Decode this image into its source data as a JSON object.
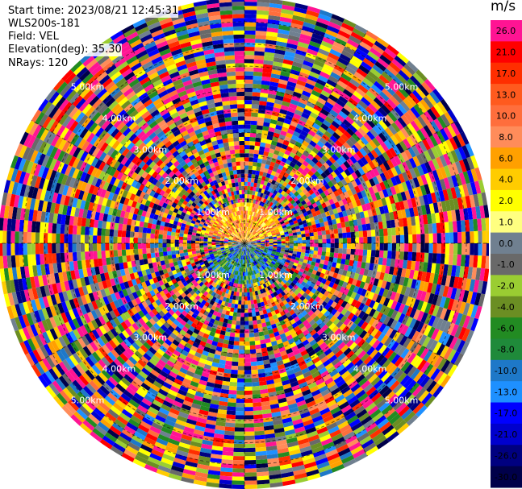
{
  "header": {
    "start_time": "Start time: 2023/08/21 12:45:31",
    "instrument": "WLS200s-181",
    "field": "Field: VEL",
    "elevation": "Elevation(deg): 35.30",
    "nrays": "NRays: 120"
  },
  "chart_data": {
    "type": "polar-ppi",
    "field": "VEL",
    "unit": "m/s",
    "nrays": 120,
    "elevation_deg": 35.3,
    "range_ring_labels": [
      "1.00km",
      "2.00km",
      "3.00km",
      "4.00km",
      "5.00km"
    ],
    "range_ring_values_km": [
      1,
      2,
      3,
      4,
      5
    ],
    "colorbar": {
      "unit": "m/s",
      "levels": [
        {
          "label": "26.0",
          "color": "#ff1493"
        },
        {
          "label": "21.0",
          "color": "#ff0000"
        },
        {
          "label": "17.0",
          "color": "#ff2e00"
        },
        {
          "label": "13.0",
          "color": "#ff5a1e"
        },
        {
          "label": "10.0",
          "color": "#ff6e3c"
        },
        {
          "label": "8.0",
          "color": "#ff8c5a"
        },
        {
          "label": "6.0",
          "color": "#ffa000"
        },
        {
          "label": "4.0",
          "color": "#ffcc00"
        },
        {
          "label": "2.0",
          "color": "#ffff00"
        },
        {
          "label": "1.0",
          "color": "#ffff80"
        },
        {
          "label": "0.0",
          "color": "#708090"
        },
        {
          "label": "-1.0",
          "color": "#696969"
        },
        {
          "label": "-2.0",
          "color": "#9acd32"
        },
        {
          "label": "-4.0",
          "color": "#6b8e23"
        },
        {
          "label": "-6.0",
          "color": "#228b22"
        },
        {
          "label": "-8.0",
          "color": "#1f8a3a"
        },
        {
          "label": "-10.0",
          "color": "#1e78c8"
        },
        {
          "label": "-13.0",
          "color": "#1e90ff"
        },
        {
          "label": "-17.0",
          "color": "#0000ff"
        },
        {
          "label": "-21.0",
          "color": "#0000cd"
        },
        {
          "label": "-26.0",
          "color": "#000080"
        },
        {
          "label": "-30.0",
          "color": "#00004a"
        }
      ]
    },
    "near_field_pattern": "positive velocities (orange/yellow) north of center, negative velocities (blue/green) south of center; noisy multi-color data beyond ~1 km"
  }
}
